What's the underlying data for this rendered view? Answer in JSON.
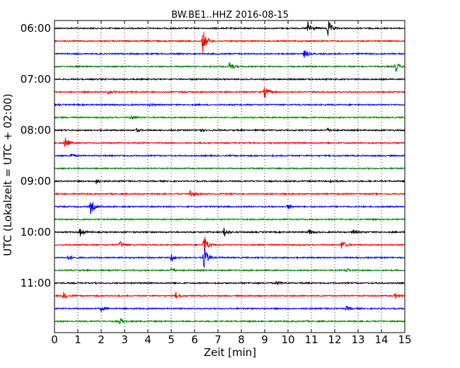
{
  "chart_data": {
    "type": "line",
    "title": "BW.BE1..HHZ 2016-08-15",
    "xlabel": "Zeit  [min]",
    "ylabel": "UTC (Lokalzeit = UTC + 02:00)",
    "xlim": [
      0,
      15
    ],
    "x_ticks": [
      0,
      1,
      2,
      3,
      4,
      5,
      6,
      7,
      8,
      9,
      10,
      11,
      12,
      13,
      14,
      15
    ],
    "y_tick_labels": [
      "06:00",
      "07:00",
      "08:00",
      "09:00",
      "10:00",
      "11:00"
    ],
    "trace_interval_min": 15,
    "grid": true,
    "series_colors": [
      "#000000",
      "#ff0000",
      "#0000ff",
      "#008000"
    ],
    "traces": [
      {
        "start": "06:00",
        "color": "#000000",
        "events": [
          {
            "t": 10.85,
            "amp": 10
          },
          {
            "t": 11.7,
            "amp": 14
          }
        ]
      },
      {
        "start": "06:15",
        "color": "#ff0000",
        "events": [
          {
            "t": 6.35,
            "amp": 18
          }
        ]
      },
      {
        "start": "06:30",
        "color": "#0000ff",
        "events": [
          {
            "t": 10.7,
            "amp": 6
          }
        ]
      },
      {
        "start": "06:45",
        "color": "#008000",
        "events": [
          {
            "t": 7.5,
            "amp": 7
          },
          {
            "t": 14.6,
            "amp": 8
          }
        ]
      },
      {
        "start": "07:00",
        "color": "#000000",
        "events": []
      },
      {
        "start": "07:15",
        "color": "#ff0000",
        "events": [
          {
            "t": 2.3,
            "amp": 3
          },
          {
            "t": 9.0,
            "amp": 9
          }
        ]
      },
      {
        "start": "07:30",
        "color": "#0000ff",
        "events": [
          {
            "t": 4.1,
            "amp": 2
          }
        ]
      },
      {
        "start": "07:45",
        "color": "#008000",
        "events": [
          {
            "t": 3.3,
            "amp": 3
          }
        ]
      },
      {
        "start": "08:00",
        "color": "#000000",
        "events": [
          {
            "t": 3.5,
            "amp": 3
          },
          {
            "t": 6.2,
            "amp": 3
          },
          {
            "t": 11.7,
            "amp": 3
          }
        ]
      },
      {
        "start": "08:15",
        "color": "#ff0000",
        "events": [
          {
            "t": 0.45,
            "amp": 9
          }
        ]
      },
      {
        "start": "08:30",
        "color": "#0000ff",
        "events": [
          {
            "t": 0.7,
            "amp": 3
          }
        ]
      },
      {
        "start": "08:45",
        "color": "#008000",
        "events": []
      },
      {
        "start": "09:00",
        "color": "#000000",
        "events": [
          {
            "t": 1.8,
            "amp": 4
          },
          {
            "t": 11.8,
            "amp": 3
          }
        ]
      },
      {
        "start": "09:15",
        "color": "#ff0000",
        "events": [
          {
            "t": 5.8,
            "amp": 7
          }
        ]
      },
      {
        "start": "09:30",
        "color": "#0000ff",
        "events": [
          {
            "t": 1.55,
            "amp": 11
          },
          {
            "t": 10.0,
            "amp": 4
          }
        ]
      },
      {
        "start": "09:45",
        "color": "#008000",
        "events": []
      },
      {
        "start": "10:00",
        "color": "#000000",
        "events": [
          {
            "t": 1.1,
            "amp": 6
          },
          {
            "t": 7.25,
            "amp": 8
          },
          {
            "t": 10.9,
            "amp": 4
          },
          {
            "t": 12.8,
            "amp": 4
          }
        ]
      },
      {
        "start": "10:15",
        "color": "#ff0000",
        "events": [
          {
            "t": 2.8,
            "amp": 5
          },
          {
            "t": 6.4,
            "amp": 16
          },
          {
            "t": 12.3,
            "amp": 7
          }
        ]
      },
      {
        "start": "10:30",
        "color": "#0000ff",
        "events": [
          {
            "t": 0.6,
            "amp": 4
          },
          {
            "t": 5.0,
            "amp": 5
          },
          {
            "t": 6.4,
            "amp": 18
          }
        ]
      },
      {
        "start": "10:45",
        "color": "#008000",
        "events": [
          {
            "t": 5.0,
            "amp": 4
          },
          {
            "t": 12.5,
            "amp": 3
          }
        ]
      },
      {
        "start": "11:00",
        "color": "#000000",
        "events": [
          {
            "t": 9.5,
            "amp": 3
          }
        ]
      },
      {
        "start": "11:15",
        "color": "#ff0000",
        "events": [
          {
            "t": 0.4,
            "amp": 5
          },
          {
            "t": 5.2,
            "amp": 5
          },
          {
            "t": 14.6,
            "amp": 4
          }
        ]
      },
      {
        "start": "11:30",
        "color": "#0000ff",
        "events": [
          {
            "t": 2.0,
            "amp": 4
          },
          {
            "t": 12.5,
            "amp": 3
          }
        ]
      },
      {
        "start": "11:45",
        "color": "#008000",
        "events": [
          {
            "t": 2.8,
            "amp": 5
          }
        ]
      }
    ]
  }
}
